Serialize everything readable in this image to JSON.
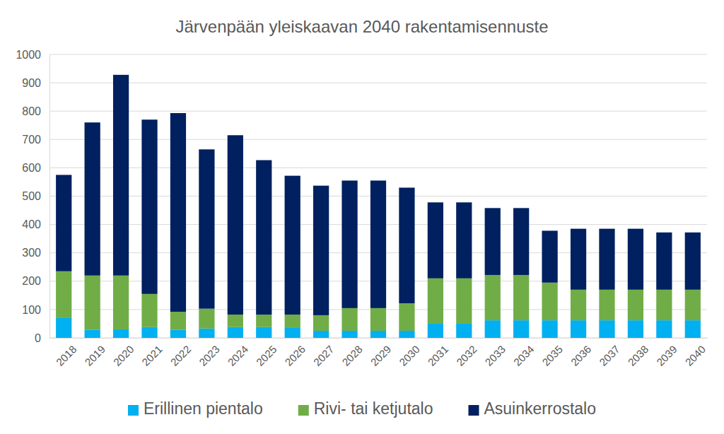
{
  "chart_data": {
    "type": "bar",
    "stacked": true,
    "title": "Järvenpään yleiskaavan 2040 rakentamisennuste",
    "categories": [
      "2018",
      "2019",
      "2020",
      "2021",
      "2022",
      "2023",
      "2024",
      "2025",
      "2026",
      "2027",
      "2028",
      "2029",
      "2030",
      "2031",
      "2032",
      "2033",
      "2034",
      "2035",
      "2036",
      "2037",
      "2038",
      "2039",
      "2040"
    ],
    "series": [
      {
        "name": "Erillinen pientalo",
        "color": "#00b0f0",
        "values": [
          70,
          28,
          30,
          38,
          28,
          33,
          38,
          38,
          35,
          25,
          25,
          25,
          25,
          52,
          52,
          62,
          62,
          62,
          62,
          62,
          62,
          62,
          62
        ]
      },
      {
        "name": "Rivi- tai ketjutalo",
        "color": "#70ad47",
        "values": [
          165,
          192,
          190,
          117,
          64,
          70,
          44,
          44,
          47,
          55,
          80,
          80,
          97,
          158,
          158,
          160,
          160,
          133,
          108,
          108,
          108,
          108,
          108
        ]
      },
      {
        "name": "Asuinkerrostalo",
        "color": "#002060",
        "values": [
          340,
          540,
          708,
          615,
          701,
          562,
          633,
          545,
          490,
          457,
          450,
          450,
          408,
          268,
          268,
          236,
          236,
          183,
          215,
          215,
          215,
          202,
          202
        ]
      }
    ],
    "ylim": [
      0,
      1000
    ],
    "yticks": [
      0,
      100,
      200,
      300,
      400,
      500,
      600,
      700,
      800,
      900,
      1000
    ],
    "grid": true,
    "legend": "bottom"
  }
}
